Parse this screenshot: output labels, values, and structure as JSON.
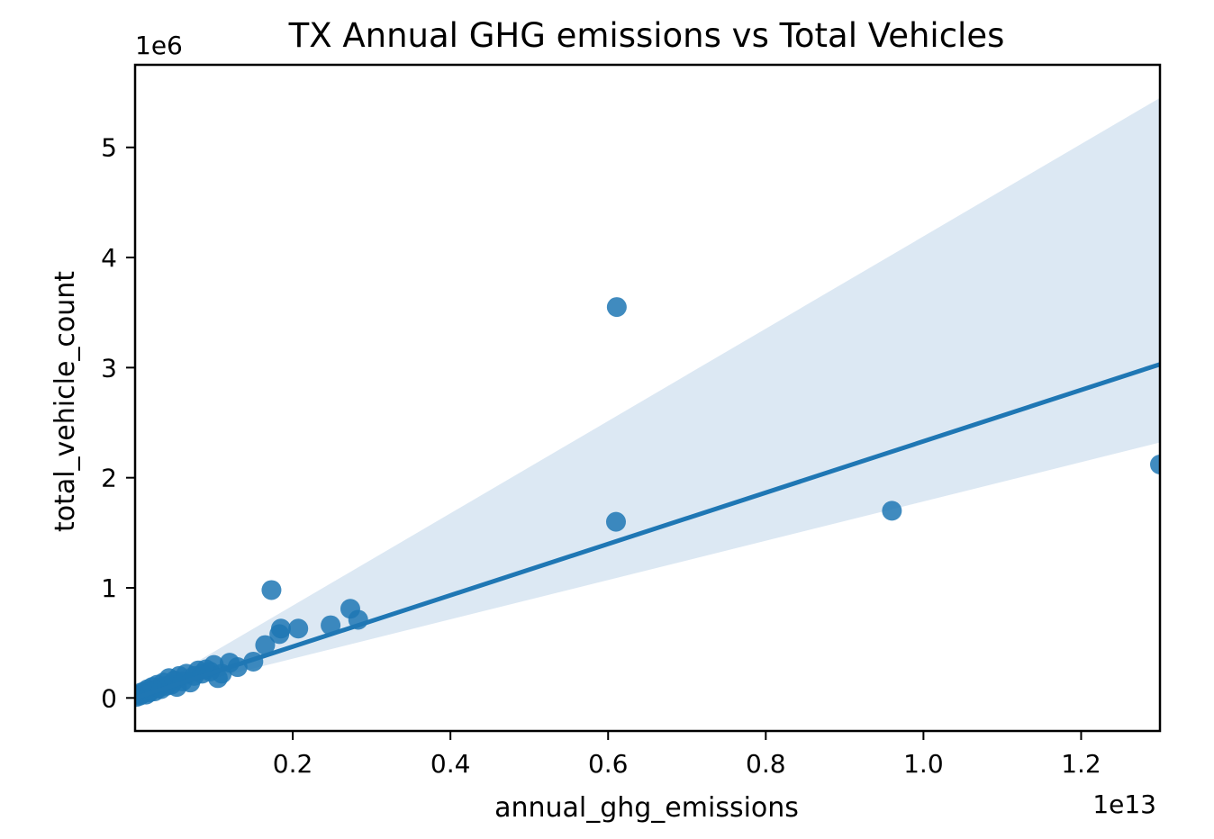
{
  "chart_data": {
    "type": "scatter",
    "title": "TX Annual GHG emissions vs Total Vehicles",
    "xlabel": "annual_ghg_emissions",
    "ylabel": "total_vehicle_count",
    "x_offset_text": "1e13",
    "y_offset_text": "1e6",
    "xlim": [
      0.0,
      1.3
    ],
    "ylim": [
      -0.3,
      5.75
    ],
    "x_ticks": [
      0.2,
      0.4,
      0.6,
      0.8,
      1.0,
      1.2
    ],
    "x_tick_labels": [
      "0.2",
      "0.4",
      "0.6",
      "0.8",
      "1.0",
      "1.2"
    ],
    "y_ticks": [
      0,
      1,
      2,
      3,
      4,
      5
    ],
    "y_tick_labels": [
      "0",
      "1",
      "2",
      "3",
      "4",
      "5"
    ],
    "grid": false,
    "series": [
      {
        "x": [
          0.002,
          0.004,
          0.006,
          0.008,
          0.01,
          0.012,
          0.014,
          0.016,
          0.018,
          0.02,
          0.022,
          0.025,
          0.028,
          0.03,
          0.033,
          0.036,
          0.04,
          0.043,
          0.046,
          0.05,
          0.053,
          0.056,
          0.06,
          0.065,
          0.07,
          0.075,
          0.08,
          0.085,
          0.09,
          0.095,
          0.1,
          0.105,
          0.11,
          0.12,
          0.13,
          0.15,
          0.165,
          0.173,
          0.183,
          0.185,
          0.207,
          0.248,
          0.273,
          0.283,
          0.61,
          0.611,
          0.96,
          1.3
        ],
        "y": [
          0.01,
          0.03,
          0.02,
          0.05,
          0.04,
          0.06,
          0.03,
          0.08,
          0.05,
          0.07,
          0.1,
          0.06,
          0.12,
          0.09,
          0.08,
          0.14,
          0.11,
          0.18,
          0.12,
          0.16,
          0.1,
          0.2,
          0.15,
          0.22,
          0.14,
          0.2,
          0.25,
          0.22,
          0.26,
          0.24,
          0.3,
          0.18,
          0.22,
          0.32,
          0.28,
          0.33,
          0.48,
          0.98,
          0.58,
          0.63,
          0.63,
          0.66,
          0.81,
          0.71,
          1.6,
          3.55,
          1.7,
          2.12
        ],
        "color": "#1f77b4"
      }
    ],
    "regression": {
      "x": [
        0.0,
        1.3
      ],
      "y": [
        0.0,
        3.03
      ],
      "ci_lower": [
        0.0,
        2.32
      ],
      "ci_upper": [
        0.0,
        5.45
      ],
      "color": "#1f77b4",
      "band_color": "#dce8f3"
    }
  }
}
